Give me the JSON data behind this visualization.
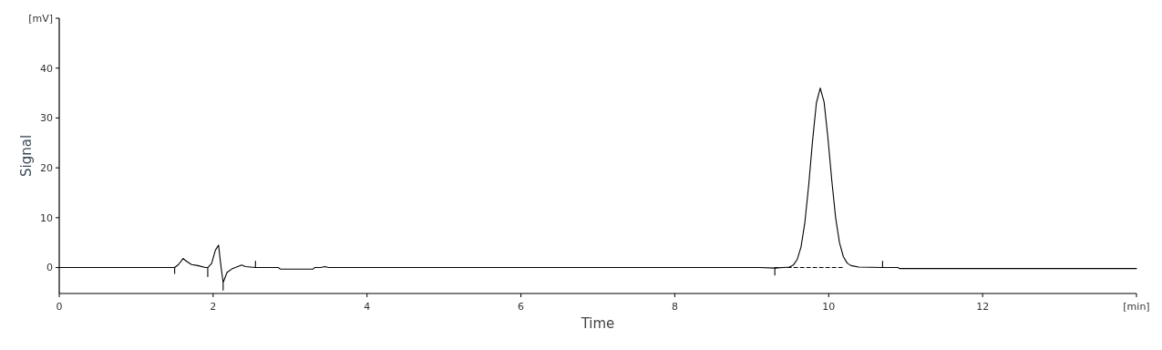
{
  "chart_data": {
    "type": "line",
    "xlabel": "Time",
    "ylabel": "Signal",
    "xlim": [
      0,
      14
    ],
    "xticks": [
      0,
      2,
      4,
      6,
      8,
      10,
      12,
      {
        "value": 14,
        "label": "[min]"
      }
    ],
    "ylim": [
      -5.2,
      50
    ],
    "yticks": [
      0,
      10,
      20,
      30,
      40,
      {
        "value": 50,
        "label": "[mV]"
      }
    ],
    "grid": false,
    "marker": "none",
    "series": [
      {
        "color": "#000000",
        "line_style": "solid",
        "x": [
          0,
          1.5,
          1.5,
          1.5,
          1.55,
          1.61,
          1.66,
          1.72,
          1.8,
          1.9,
          1.93,
          1.93,
          1.93,
          1.98,
          2.03,
          2.07,
          2.1,
          2.13,
          2.13,
          2.13,
          2.18,
          2.25,
          2.32,
          2.37,
          2.42,
          2.55,
          2.55,
          2.55,
          2.85,
          2.87,
          3.3,
          3.32,
          3.4,
          3.45,
          3.5,
          9.1,
          9.3,
          9.3,
          9.3,
          9.41,
          9.49,
          9.54,
          9.59,
          9.64,
          9.69,
          9.74,
          9.79,
          9.84,
          9.89,
          9.94,
          9.99,
          10.04,
          10.09,
          10.14,
          10.19,
          10.24,
          10.29,
          10.39,
          10.7,
          10.7,
          10.7,
          10.9,
          10.92,
          14
        ],
        "values": [
          0,
          0,
          -1.2,
          0,
          0.6,
          1.8,
          1.2,
          0.6,
          0.4,
          0,
          0,
          -1.8,
          0,
          0.8,
          3.5,
          4.5,
          0.5,
          -3,
          -4.5,
          -3,
          -1,
          -0.2,
          0.2,
          0.5,
          0.2,
          0,
          1.3,
          0,
          0,
          -0.3,
          -0.3,
          0,
          0,
          0.2,
          0,
          0,
          -0.1,
          -1.5,
          -0.1,
          0,
          0.1,
          0.5,
          1.6,
          4.1,
          9,
          16.5,
          25.4,
          33,
          36,
          33.2,
          26,
          17.5,
          10,
          5,
          2.2,
          0.9,
          0.4,
          0.1,
          0,
          1.3,
          0,
          0,
          -0.2,
          -0.2
        ]
      },
      {
        "color": "#000000",
        "line_style": "dashed",
        "x": [
          9.3,
          10.2
        ],
        "values": [
          0,
          0
        ]
      }
    ]
  }
}
